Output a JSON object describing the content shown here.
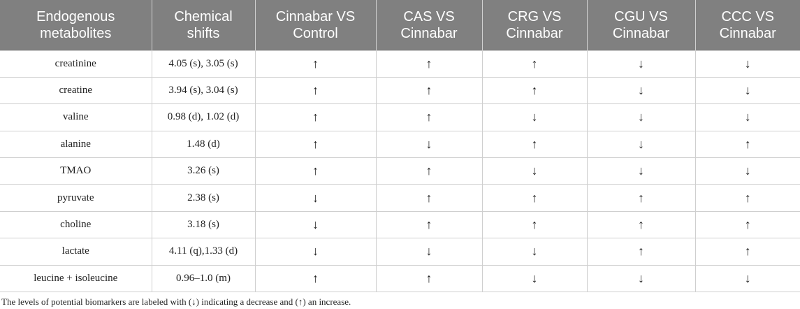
{
  "table": {
    "headers": [
      "Endogenous\nmetabolites",
      "Chemical\nshifts",
      "Cinnabar VS\nControl",
      "CAS VS\nCinnabar",
      "CRG VS\nCinnabar",
      "CGU VS\nCinnabar",
      "CCC VS\nCinnabar"
    ],
    "rows": [
      [
        "creatinine",
        "4.05 (s), 3.05 (s)",
        "↑",
        "↑",
        "↑",
        "↓",
        "↓"
      ],
      [
        "creatine",
        "3.94 (s), 3.04 (s)",
        "↑",
        "↑",
        "↑",
        "↓",
        "↓"
      ],
      [
        "valine",
        "0.98 (d), 1.02 (d)",
        "↑",
        "↑",
        "↓",
        "↓",
        "↓"
      ],
      [
        "alanine",
        "1.48 (d)",
        "↑",
        "↓",
        "↑",
        "↓",
        "↑"
      ],
      [
        "TMAO",
        "3.26 (s)",
        "↑",
        "↑",
        "↓",
        "↓",
        "↓"
      ],
      [
        "pyruvate",
        "2.38 (s)",
        "↓",
        "↑",
        "↑",
        "↑",
        "↑"
      ],
      [
        "choline",
        "3.18 (s)",
        "↓",
        "↑",
        "↑",
        "↑",
        "↑"
      ],
      [
        "lactate",
        "4.11 (q),1.33 (d)",
        "↓",
        "↓",
        "↓",
        "↑",
        "↑"
      ],
      [
        "leucine + isoleucine",
        "0.96–1.0 (m)",
        "↑",
        "↑",
        "↓",
        "↓",
        "↓"
      ]
    ]
  },
  "footnote": "The levels of potential biomarkers are labeled with (↓) indicating a decrease and (↑) an increase.",
  "colors": {
    "header_background": "#808080",
    "header_text": "#ffffff",
    "grid_lines": "#cfcfcf"
  }
}
